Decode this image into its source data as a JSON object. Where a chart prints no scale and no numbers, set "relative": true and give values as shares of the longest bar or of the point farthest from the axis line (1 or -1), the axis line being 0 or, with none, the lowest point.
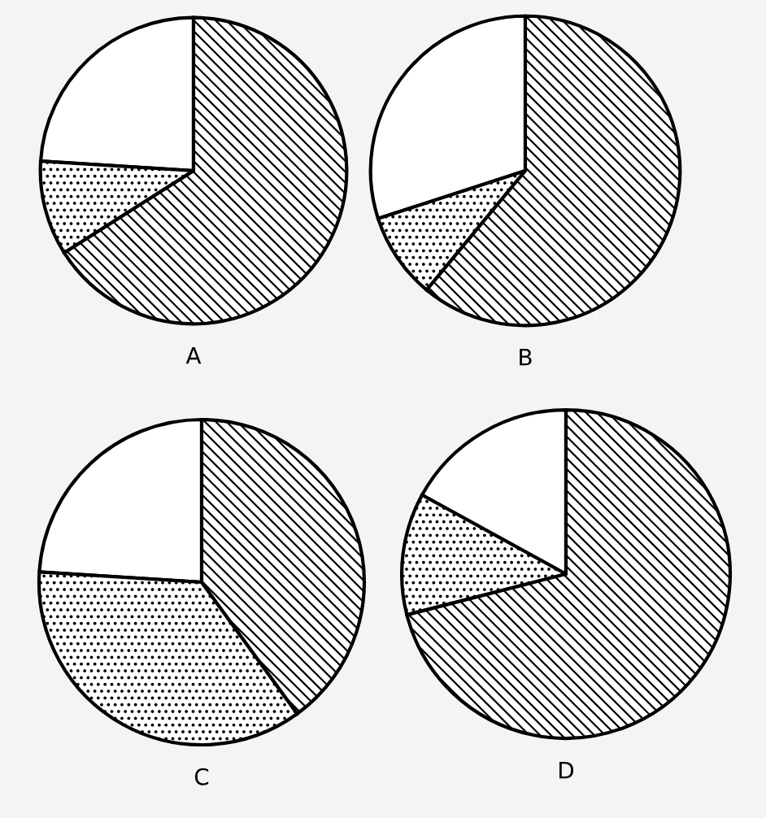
{
  "chart_data": [
    {
      "type": "pie",
      "xlabel": "A",
      "categories": [
        null,
        null,
        null
      ],
      "values": [
        24,
        10,
        66
      ],
      "relative": true
    },
    {
      "type": "pie",
      "xlabel": "B",
      "categories": [
        null,
        null,
        null
      ],
      "values": [
        30,
        9,
        61
      ],
      "relative": true
    },
    {
      "type": "pie",
      "xlabel": "C",
      "categories": [
        null,
        null,
        null
      ],
      "values": [
        24,
        36,
        40
      ],
      "relative": true
    },
    {
      "type": "pie",
      "xlabel": "D",
      "categories": [
        null,
        null,
        null
      ],
      "values": [
        17,
        12,
        71
      ],
      "relative": true
    }
  ]
}
